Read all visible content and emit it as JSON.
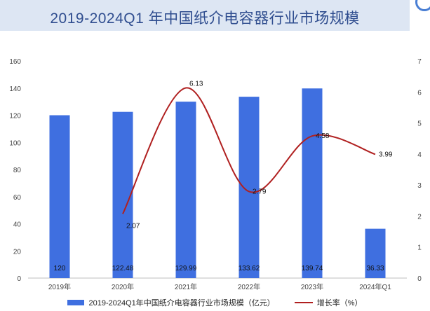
{
  "header": {
    "title": "2019-2024Q1 年中国纸介电容器行业市场规模"
  },
  "legend": {
    "bar_label": "2019-2024Q1年中国纸介电容器行业市场规模（亿元）",
    "line_label": "增长率（%）"
  },
  "chart_data": {
    "type": "bar",
    "title": "2019-2024Q1 年中国纸介电容器行业市场规模",
    "categories": [
      "2019年",
      "2020年",
      "2021年",
      "2022年",
      "2023年",
      "2024年Q1"
    ],
    "series": [
      {
        "name": "2019-2024Q1年中国纸介电容器行业市场规模（亿元）",
        "type": "bar",
        "axis": "left",
        "color": "#3f6fe0",
        "values": [
          120,
          122.48,
          129.99,
          133.62,
          139.74,
          36.33
        ],
        "labels": [
          "120",
          "122.48",
          "129.99",
          "133.62",
          "139.74",
          "36.33"
        ]
      },
      {
        "name": "增长率（%）",
        "type": "line",
        "axis": "right",
        "color": "#b02020",
        "smooth": true,
        "values": [
          null,
          2.07,
          6.13,
          2.79,
          4.58,
          3.99
        ],
        "labels": [
          "",
          "2.07",
          "6.13",
          "2.79",
          "4.58",
          "3.99"
        ]
      }
    ],
    "y_left": {
      "min": 0,
      "max": 160,
      "step": 20,
      "ticks": [
        "0",
        "20",
        "40",
        "60",
        "80",
        "100",
        "120",
        "140",
        "160"
      ]
    },
    "y_right": {
      "min": 0,
      "max": 7,
      "step": 1,
      "ticks": [
        "0",
        "1",
        "2",
        "3",
        "4",
        "5",
        "6",
        "7"
      ]
    },
    "grid": false,
    "legend_position": "bottom"
  }
}
